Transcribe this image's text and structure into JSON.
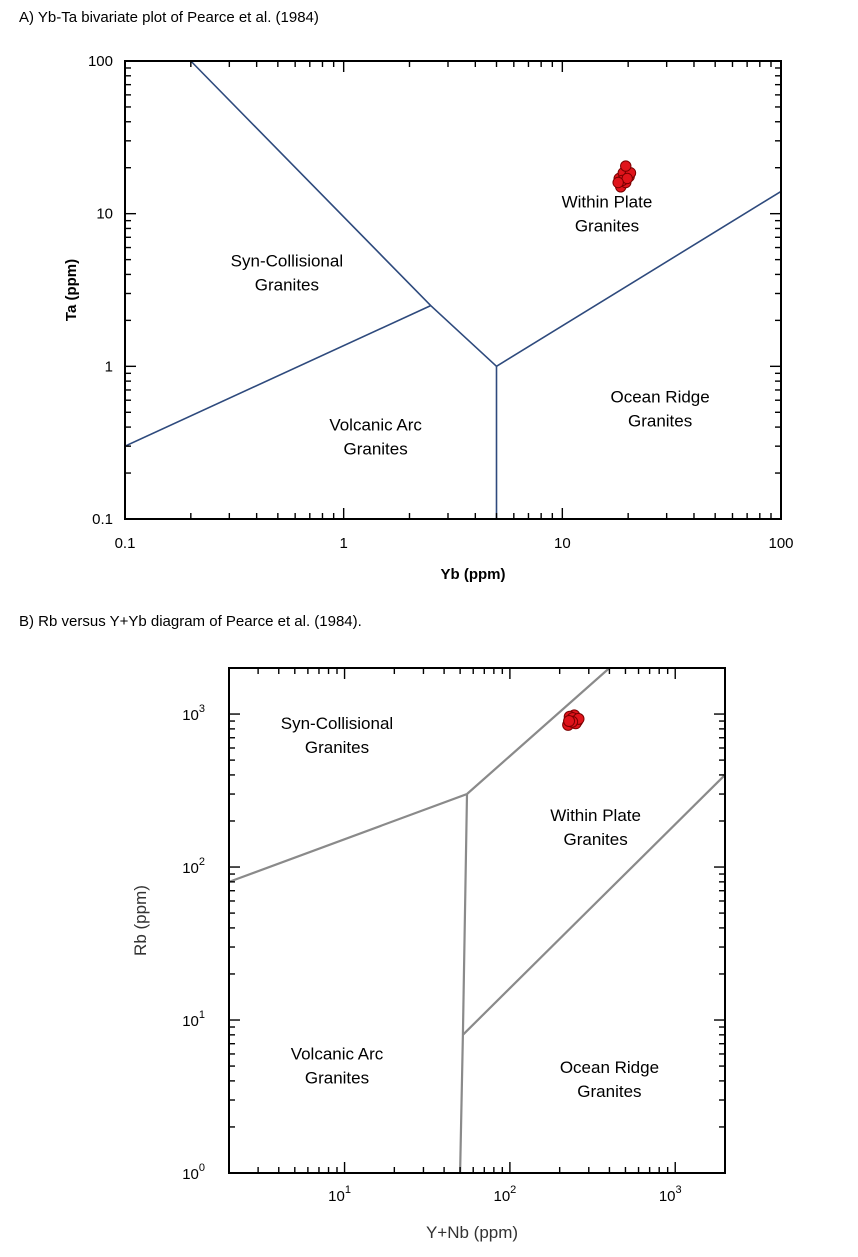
{
  "chart_data": [
    {
      "type": "scatter",
      "title": "A) Yb-Ta bivariate plot of Pearce et al. (1984)",
      "xlabel": "Yb (ppm)",
      "ylabel": "Ta (ppm)",
      "xscale": "log",
      "yscale": "log",
      "xlim": [
        0.1,
        100
      ],
      "ylim": [
        0.1,
        100
      ],
      "x_tick_labels": [
        "0.1",
        "1",
        "10",
        "100"
      ],
      "y_tick_labels": [
        "0.1",
        "1",
        "10",
        "100"
      ],
      "grid": false,
      "point_color": "#e0141b",
      "boundary_color": "#2e4a7d",
      "boundaries": [
        [
          [
            0.2,
            100
          ],
          [
            2.5,
            2.5
          ],
          [
            5,
            1
          ]
        ],
        [
          [
            0.1,
            0.3
          ],
          [
            2.5,
            2.5
          ]
        ],
        [
          [
            5,
            1
          ],
          [
            5,
            0.1
          ]
        ],
        [
          [
            5,
            1
          ],
          [
            100,
            14
          ]
        ]
      ],
      "regions": [
        {
          "lines": [
            "Syn-Collisional",
            "Granites"
          ],
          "x": 0.55,
          "y": 4.5
        },
        {
          "lines": [
            "Within Plate",
            "Granites"
          ],
          "x": 16,
          "y": 11
        },
        {
          "lines": [
            "Volcanic Arc",
            "Granites"
          ],
          "x": 1.4,
          "y": 0.38
        },
        {
          "lines": [
            "Ocean Ridge",
            "Granites"
          ],
          "x": 28,
          "y": 0.58
        }
      ],
      "points": [
        [
          18.5,
          15
        ],
        [
          19.5,
          16
        ],
        [
          18.2,
          17
        ],
        [
          19,
          18.5
        ],
        [
          20.2,
          17.5
        ],
        [
          20.5,
          18.5
        ],
        [
          19.5,
          20.5
        ],
        [
          18.8,
          16.5
        ],
        [
          19.8,
          17
        ],
        [
          18,
          16
        ]
      ]
    },
    {
      "type": "scatter",
      "title": "B) Rb versus Y+Yb diagram of Pearce et al. (1984).",
      "xlabel": "Y+Nb (ppm)",
      "ylabel": "Rb (ppm)",
      "xscale": "log",
      "yscale": "log",
      "xlim": [
        2,
        2000
      ],
      "ylim": [
        1,
        2000
      ],
      "x_ticks": [
        {
          "base": "10",
          "exp": "1",
          "value": 10
        },
        {
          "base": "10",
          "exp": "2",
          "value": 100
        },
        {
          "base": "10",
          "exp": "3",
          "value": 1000
        }
      ],
      "y_ticks": [
        {
          "base": "10",
          "exp": "0",
          "value": 1
        },
        {
          "base": "10",
          "exp": "1",
          "value": 10
        },
        {
          "base": "10",
          "exp": "2",
          "value": 100
        },
        {
          "base": "10",
          "exp": "3",
          "value": 1000
        }
      ],
      "grid": false,
      "point_color": "#e0141b",
      "boundary_color": "#8a8a8a",
      "boundaries": [
        [
          [
            2,
            80
          ],
          [
            55,
            300
          ],
          [
            400,
            2000
          ]
        ],
        [
          [
            55,
            300
          ],
          [
            52,
            8
          ],
          [
            50,
            1
          ]
        ],
        [
          [
            52,
            8
          ],
          [
            2000,
            400
          ]
        ]
      ],
      "regions": [
        {
          "lines": [
            "Syn-Collisional",
            "Granites"
          ],
          "x": 9,
          "y": 800
        },
        {
          "lines": [
            "Within Plate",
            "Granites"
          ],
          "x": 330,
          "y": 200
        },
        {
          "lines": [
            "Volcanic Arc",
            "Granites"
          ],
          "x": 9,
          "y": 5.5
        },
        {
          "lines": [
            "Ocean Ridge",
            "Granites"
          ],
          "x": 400,
          "y": 4.5
        }
      ],
      "points": [
        [
          225,
          850
        ],
        [
          235,
          920
        ],
        [
          245,
          980
        ],
        [
          255,
          900
        ],
        [
          230,
          960
        ],
        [
          250,
          870
        ],
        [
          240,
          940
        ],
        [
          260,
          930
        ],
        [
          238,
          890
        ],
        [
          228,
          900
        ]
      ]
    }
  ]
}
